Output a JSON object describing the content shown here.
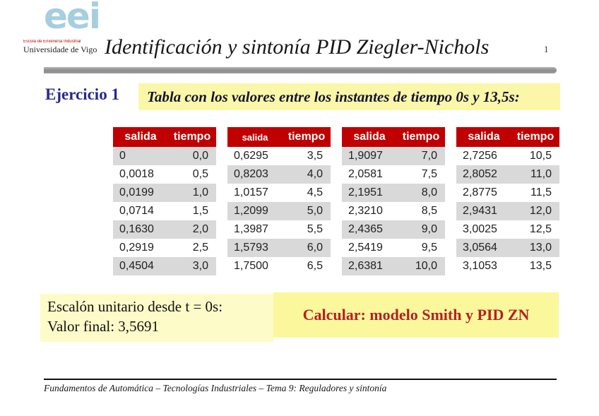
{
  "header": {
    "logo_text": "eei",
    "logo_sub1": "Escola de Enxeñería Industrial",
    "logo_sub2": "Universidade de Vigo",
    "title": "Identificación y sintonía PID Ziegler-Nichols",
    "page_number": "1"
  },
  "exercise": {
    "label": "Ejercicio 1",
    "statement": "Tabla con los valores entre los instantes de tiempo 0s y 13,5s:"
  },
  "tables": {
    "columns": [
      "salida",
      "tiempo"
    ],
    "groups": [
      {
        "rows": [
          [
            "0",
            "0,0"
          ],
          [
            "0,0018",
            "0,5"
          ],
          [
            "0,0199",
            "1,0"
          ],
          [
            "0,0714",
            "1,5"
          ],
          [
            "0,1630",
            "2,0"
          ],
          [
            "0,2919",
            "2,5"
          ],
          [
            "0,4504",
            "3,0"
          ]
        ]
      },
      {
        "rows": [
          [
            "0,6295",
            "3,5"
          ],
          [
            "0,8203",
            "4,0"
          ],
          [
            "1,0157",
            "4,5"
          ],
          [
            "1,2099",
            "5,0"
          ],
          [
            "1,3987",
            "5,5"
          ],
          [
            "1,5793",
            "6,0"
          ],
          [
            "1,7500",
            "6,5"
          ]
        ]
      },
      {
        "rows": [
          [
            "1,9097",
            "7,0"
          ],
          [
            "2,0581",
            "7,5"
          ],
          [
            "2,1951",
            "8,0"
          ],
          [
            "2,3210",
            "8,5"
          ],
          [
            "2,4365",
            "9,0"
          ],
          [
            "2,5419",
            "9,5"
          ],
          [
            "2,6381",
            "10,0"
          ]
        ]
      },
      {
        "rows": [
          [
            "2,7256",
            "10,5"
          ],
          [
            "2,8052",
            "11,0"
          ],
          [
            "2,8775",
            "11,5"
          ],
          [
            "2,9431",
            "12,0"
          ],
          [
            "3,0025",
            "12,5"
          ],
          [
            "3,0564",
            "13,0"
          ],
          [
            "3,1053",
            "13,5"
          ]
        ]
      }
    ]
  },
  "notes": {
    "step_line1": "Escalón unitario desde t = 0s:",
    "step_line2": "Valor final: 3,5691",
    "task": "Calcular: modelo Smith y PID ZN"
  },
  "footer": {
    "text": "Fundamentos de Automática – Tecnologías Industriales – Tema 9: Reguladores y sintonía"
  },
  "colors": {
    "table_header_bg": "#C00000",
    "row_alt_bg": "#D9D9D9",
    "exercise_label_color": "#28288C",
    "task_text_color": "#B22222",
    "highlight_statement": "#FBF7A8",
    "highlight_note_left": "#FDFBC8",
    "highlight_note_right": "#FBF79D",
    "logo_blue": "#A6CEDE"
  }
}
